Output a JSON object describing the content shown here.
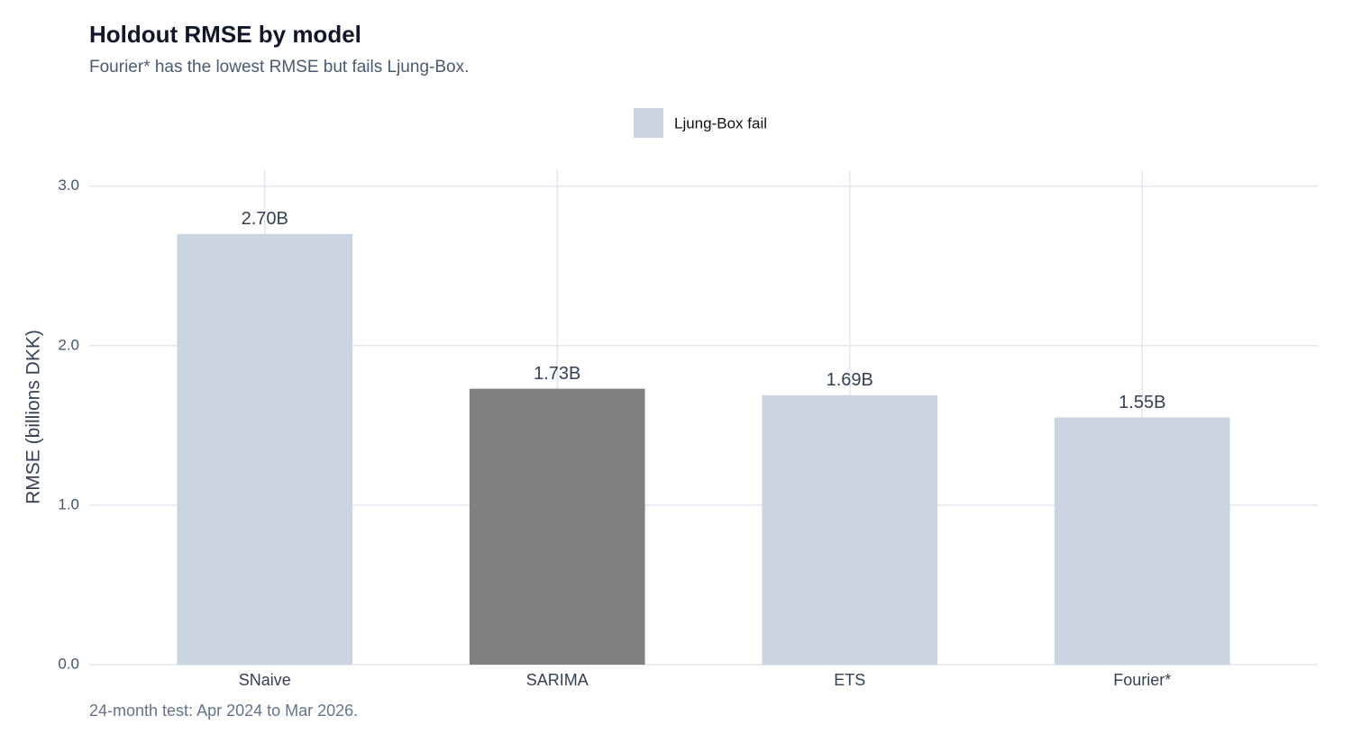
{
  "chart_data": {
    "type": "bar",
    "title": "Holdout RMSE by model",
    "subtitle": "Fourier* has the lowest RMSE but fails Ljung-Box.",
    "caption": "24-month test: Apr 2024 to Mar 2026.",
    "y_label": "RMSE (billions DKK)",
    "categories": [
      "SNaive",
      "SARIMA",
      "ETS",
      "Fourier*"
    ],
    "values": [
      2.7,
      1.73,
      1.69,
      1.55
    ],
    "value_labels": [
      "2.70B",
      "1.73B",
      "1.69B",
      "1.55B"
    ],
    "colors": [
      "#cbd5e1",
      "#808080",
      "#cbd5e1",
      "#cbd5e1"
    ],
    "legend": [
      {
        "label": "Ljung-Box fail",
        "color": "#cbd5e1"
      }
    ],
    "legend_position": "top",
    "ylim": [
      0,
      3.1
    ],
    "yticks": [
      {
        "value": 0,
        "label": "0.0"
      },
      {
        "value": 1,
        "label": "1.0"
      },
      {
        "value": 2,
        "label": "2.0"
      },
      {
        "value": 3,
        "label": "3.0"
      }
    ],
    "grid": true
  }
}
